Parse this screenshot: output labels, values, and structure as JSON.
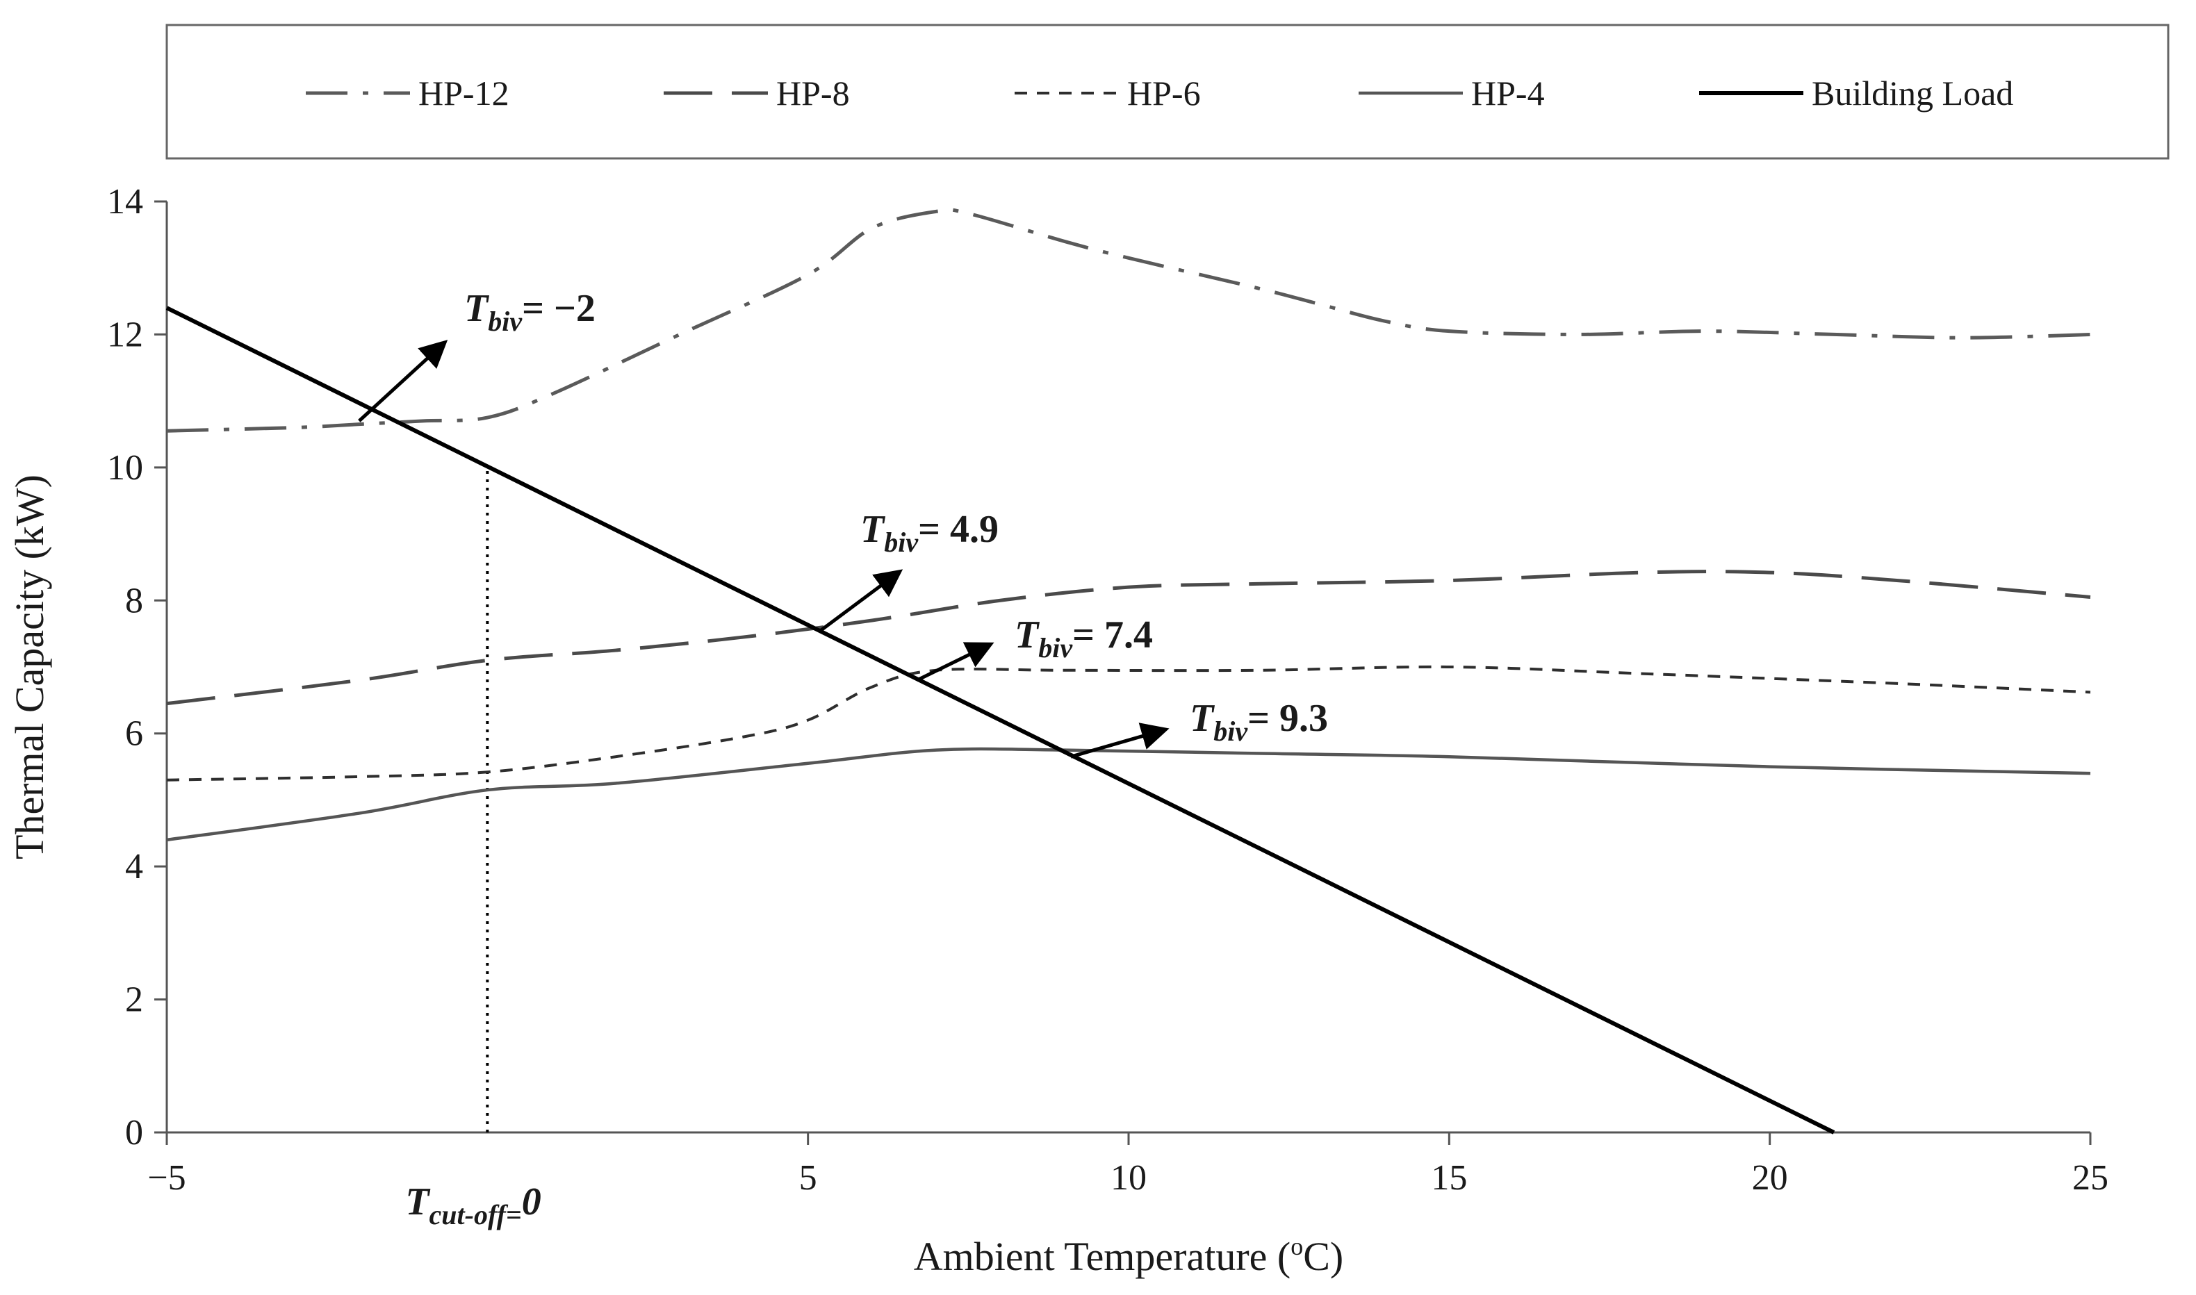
{
  "chart_data": {
    "type": "line",
    "title": "",
    "xlabel": "Ambient Temperature (",
    "xlabel_sup": "o",
    "xlabel_suffix": "C)",
    "ylabel": "Thermal Capacity (kW)",
    "xlim": [
      -5,
      25
    ],
    "ylim": [
      0,
      14
    ],
    "x_ticks": [
      -5,
      5,
      10,
      15,
      20,
      25
    ],
    "x_tick_labels": [
      "−5",
      "5",
      "10",
      "15",
      "20",
      "25"
    ],
    "y_ticks": [
      0,
      2,
      4,
      6,
      8,
      10,
      12,
      14
    ],
    "y_tick_labels": [
      "0",
      "2",
      "4",
      "6",
      "8",
      "10",
      "12",
      "14"
    ],
    "grid": false,
    "legend_position": "top",
    "series": [
      {
        "name": "HP-12",
        "dash": "dashdot",
        "color": "#5a5a5a",
        "points": [
          [
            -5,
            10.55
          ],
          [
            -3,
            10.6
          ],
          [
            -2,
            10.65
          ],
          [
            -1,
            10.7
          ],
          [
            0,
            10.75
          ],
          [
            1,
            11.1
          ],
          [
            3,
            12.0
          ],
          [
            5,
            12.9
          ],
          [
            6,
            13.6
          ],
          [
            7,
            13.85
          ],
          [
            7.5,
            13.82
          ],
          [
            9,
            13.4
          ],
          [
            10,
            13.15
          ],
          [
            12,
            12.7
          ],
          [
            13,
            12.45
          ],
          [
            14,
            12.2
          ],
          [
            15,
            12.05
          ],
          [
            17,
            12.0
          ],
          [
            19,
            12.05
          ],
          [
            21,
            12.0
          ],
          [
            23,
            11.95
          ],
          [
            25,
            12.0
          ]
        ]
      },
      {
        "name": "HP-8",
        "dash": "longdash",
        "color": "#4a4a4a",
        "points": [
          [
            -5,
            6.45
          ],
          [
            -2,
            6.8
          ],
          [
            0,
            7.1
          ],
          [
            2,
            7.25
          ],
          [
            4,
            7.45
          ],
          [
            6,
            7.7
          ],
          [
            8,
            8.0
          ],
          [
            10,
            8.2
          ],
          [
            12,
            8.25
          ],
          [
            15,
            8.3
          ],
          [
            18,
            8.42
          ],
          [
            20,
            8.42
          ],
          [
            22,
            8.3
          ],
          [
            25,
            8.05
          ]
        ]
      },
      {
        "name": "HP-6",
        "dash": "shortdash",
        "color": "#2e2e2e",
        "points": [
          [
            -5,
            5.3
          ],
          [
            -2,
            5.35
          ],
          [
            0,
            5.42
          ],
          [
            2,
            5.65
          ],
          [
            4,
            5.95
          ],
          [
            5,
            6.2
          ],
          [
            6,
            6.7
          ],
          [
            7,
            6.95
          ],
          [
            9,
            6.95
          ],
          [
            12,
            6.95
          ],
          [
            15,
            7.0
          ],
          [
            18,
            6.9
          ],
          [
            22,
            6.75
          ],
          [
            25,
            6.62
          ]
        ]
      },
      {
        "name": "HP-4",
        "dash": "solid",
        "color": "#555555",
        "points": [
          [
            -5,
            4.4
          ],
          [
            -2,
            4.8
          ],
          [
            0,
            5.15
          ],
          [
            2,
            5.25
          ],
          [
            5,
            5.55
          ],
          [
            7,
            5.75
          ],
          [
            9,
            5.75
          ],
          [
            12,
            5.7
          ],
          [
            15,
            5.65
          ],
          [
            20,
            5.5
          ],
          [
            25,
            5.4
          ]
        ]
      },
      {
        "name": "Building Load",
        "dash": "solid",
        "color": "#000000",
        "points": [
          [
            -5,
            12.4
          ],
          [
            21,
            0
          ]
        ]
      }
    ],
    "annotations": [
      {
        "symbol": "T",
        "subscript": "biv",
        "value": "= −2",
        "point": [
          -2,
          10.7
        ]
      },
      {
        "symbol": "T",
        "subscript": "biv",
        "value": "= 4.9",
        "point": [
          5.2,
          7.55
        ]
      },
      {
        "symbol": "T",
        "subscript": "biv",
        "value": "= 7.4",
        "point": [
          6.7,
          6.8
        ]
      },
      {
        "symbol": "T",
        "subscript": "biv",
        "value": "= 9.3",
        "point": [
          9.1,
          5.65
        ]
      },
      {
        "symbol": "T",
        "subscript": "cut-off",
        "value": "=0",
        "x": 0
      }
    ],
    "cutoff_line_x": 0
  }
}
